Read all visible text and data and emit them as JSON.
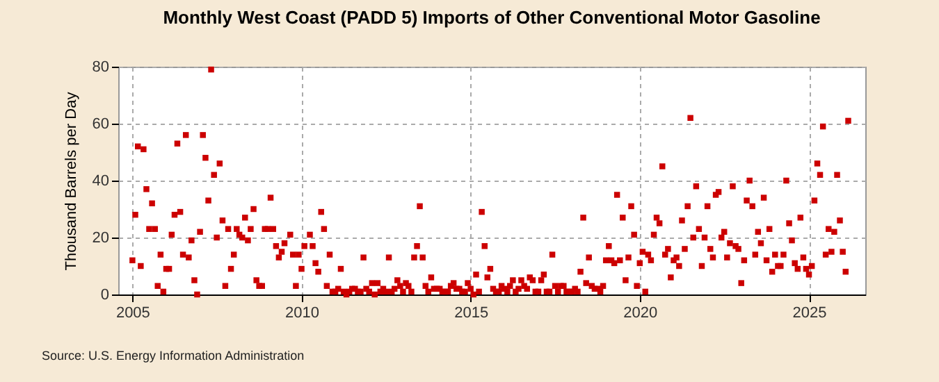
{
  "chart_data": {
    "type": "scatter",
    "title": "Monthly West Coast (PADD 5) Imports of Other Conventional Motor Gasoline",
    "ylabel": "Thousand Barrels per Day",
    "annotations": [
      "Source: U.S. Energy Information Administration"
    ],
    "xlim": [
      "2004-08",
      "2026-09"
    ],
    "xticks": [
      "2005",
      "2010",
      "2015",
      "2020",
      "2025"
    ],
    "ylim": [
      0,
      80
    ],
    "yticks": [
      0,
      20,
      40,
      60,
      80
    ],
    "grid": true,
    "marker": "square",
    "series": [
      {
        "color": "#cc0000",
        "x": [
          "2005-01",
          "2005-02",
          "2005-03",
          "2005-04",
          "2005-05",
          "2005-06",
          "2005-07",
          "2005-08",
          "2005-09",
          "2005-10",
          "2005-11",
          "2005-12",
          "2006-01",
          "2006-02",
          "2006-03",
          "2006-04",
          "2006-05",
          "2006-06",
          "2006-07",
          "2006-08",
          "2006-09",
          "2006-10",
          "2006-11",
          "2006-12",
          "2007-01",
          "2007-02",
          "2007-03",
          "2007-04",
          "2007-05",
          "2007-06",
          "2007-07",
          "2007-08",
          "2007-09",
          "2007-10",
          "2007-11",
          "2007-12",
          "2008-01",
          "2008-02",
          "2008-03",
          "2008-04",
          "2008-05",
          "2008-06",
          "2008-07",
          "2008-08",
          "2008-09",
          "2008-10",
          "2008-11",
          "2008-12",
          "2009-01",
          "2009-02",
          "2009-03",
          "2009-04",
          "2009-05",
          "2009-06",
          "2009-07",
          "2009-09",
          "2009-10",
          "2009-11",
          "2009-12",
          "2010-01",
          "2010-02",
          "2010-04",
          "2010-05",
          "2010-06",
          "2010-07",
          "2010-08",
          "2010-09",
          "2010-10",
          "2010-11",
          "2010-12",
          "2011-01",
          "2011-02",
          "2011-03",
          "2011-04",
          "2011-05",
          "2011-06",
          "2011-07",
          "2011-08",
          "2011-09",
          "2011-10",
          "2011-11",
          "2011-12",
          "2012-01",
          "2012-02",
          "2012-03",
          "2012-04",
          "2012-05",
          "2012-06",
          "2012-07",
          "2012-08",
          "2012-09",
          "2012-10",
          "2012-11",
          "2012-12",
          "2013-01",
          "2013-02",
          "2013-03",
          "2013-04",
          "2013-05",
          "2013-06",
          "2013-07",
          "2013-08",
          "2013-09",
          "2013-10",
          "2013-11",
          "2013-12",
          "2014-01",
          "2014-02",
          "2014-03",
          "2014-04",
          "2014-05",
          "2014-06",
          "2014-07",
          "2014-08",
          "2014-09",
          "2014-10",
          "2014-11",
          "2014-12",
          "2015-01",
          "2015-02",
          "2015-03",
          "2015-04",
          "2015-05",
          "2015-06",
          "2015-07",
          "2015-08",
          "2015-09",
          "2015-10",
          "2015-11",
          "2015-12",
          "2016-01",
          "2016-02",
          "2016-03",
          "2016-04",
          "2016-05",
          "2016-06",
          "2016-07",
          "2016-08",
          "2016-09",
          "2016-10",
          "2016-11",
          "2016-12",
          "2017-01",
          "2017-02",
          "2017-03",
          "2017-04",
          "2017-05",
          "2017-06",
          "2017-07",
          "2017-08",
          "2017-09",
          "2017-10",
          "2017-11",
          "2017-12",
          "2018-01",
          "2018-02",
          "2018-03",
          "2018-04",
          "2018-05",
          "2018-06",
          "2018-07",
          "2018-08",
          "2018-09",
          "2018-10",
          "2018-11",
          "2018-12",
          "2019-01",
          "2019-02",
          "2019-03",
          "2019-04",
          "2019-05",
          "2019-06",
          "2019-07",
          "2019-08",
          "2019-09",
          "2019-10",
          "2019-11",
          "2019-12",
          "2020-01",
          "2020-02",
          "2020-03",
          "2020-04",
          "2020-05",
          "2020-06",
          "2020-07",
          "2020-08",
          "2020-09",
          "2020-10",
          "2020-11",
          "2020-12",
          "2021-01",
          "2021-02",
          "2021-03",
          "2021-04",
          "2021-05",
          "2021-06",
          "2021-07",
          "2021-08",
          "2021-09",
          "2021-10",
          "2021-11",
          "2021-12",
          "2022-01",
          "2022-02",
          "2022-03",
          "2022-04",
          "2022-05",
          "2022-06",
          "2022-07",
          "2022-08",
          "2022-09",
          "2022-10",
          "2022-11",
          "2022-12",
          "2023-01",
          "2023-02",
          "2023-03",
          "2023-04",
          "2023-05",
          "2023-06",
          "2023-07",
          "2023-08",
          "2023-09",
          "2023-10",
          "2023-11",
          "2023-12",
          "2024-01",
          "2024-02",
          "2024-03",
          "2024-04",
          "2024-05",
          "2024-06",
          "2024-07",
          "2024-08",
          "2024-09",
          "2024-10",
          "2024-11",
          "2024-12",
          "2025-01",
          "2025-02",
          "2025-03",
          "2025-04",
          "2025-05",
          "2025-06",
          "2025-07",
          "2025-08",
          "2025-09",
          "2025-10",
          "2025-11",
          "2025-12",
          "2026-01",
          "2026-02",
          "2026-03"
        ],
        "values": [
          12,
          28,
          52,
          10,
          51,
          37,
          23,
          32,
          23,
          3,
          14,
          1,
          9,
          9,
          21,
          28,
          53,
          29,
          14,
          56,
          13,
          19,
          5,
          0,
          22,
          56,
          48,
          33,
          79,
          42,
          20,
          46,
          26,
          3,
          23,
          9,
          14,
          23,
          21,
          20,
          27,
          19,
          23,
          30,
          5,
          3,
          3,
          23,
          23,
          34,
          23,
          17,
          13,
          15,
          18,
          21,
          14,
          3,
          14,
          9,
          17,
          21,
          17,
          11,
          8,
          29,
          23,
          3,
          14,
          1,
          1,
          2,
          9,
          1,
          0,
          1,
          2,
          2,
          1,
          1,
          13,
          2,
          1,
          4,
          0,
          4,
          1,
          2,
          1,
          13,
          1,
          2,
          5,
          3,
          1,
          4,
          3,
          1,
          13,
          17,
          31,
          13,
          3,
          1,
          6,
          2,
          2,
          2,
          1,
          1,
          1,
          3,
          4,
          2,
          2,
          1,
          1,
          4,
          2,
          0,
          7,
          1,
          29,
          17,
          6,
          9,
          2,
          1,
          1,
          3,
          2,
          1,
          3,
          5,
          1,
          2,
          5,
          3,
          2,
          6,
          5,
          1,
          1,
          5,
          7,
          1,
          1,
          14,
          3,
          1,
          3,
          3,
          1,
          1,
          1,
          2,
          1,
          8,
          27,
          4,
          13,
          3,
          2,
          2,
          1,
          3,
          12,
          17,
          12,
          11,
          35,
          12,
          27,
          5,
          13,
          31,
          21,
          3,
          11,
          15,
          1,
          14,
          12,
          21,
          27,
          25,
          45,
          14,
          16,
          6,
          12,
          13,
          10,
          26,
          16,
          31,
          62,
          20,
          38,
          23,
          10,
          20,
          31,
          16,
          13,
          35,
          36,
          20,
          22,
          13,
          18,
          38,
          17,
          16,
          4,
          12,
          33,
          40,
          31,
          14,
          22,
          18,
          34,
          12,
          23,
          8,
          14,
          10,
          10,
          14,
          40,
          25,
          19,
          11,
          9,
          27,
          13,
          9,
          7,
          10,
          33,
          46,
          42,
          59,
          14,
          23,
          15,
          22,
          42,
          26,
          15,
          8,
          61
        ]
      }
    ]
  }
}
